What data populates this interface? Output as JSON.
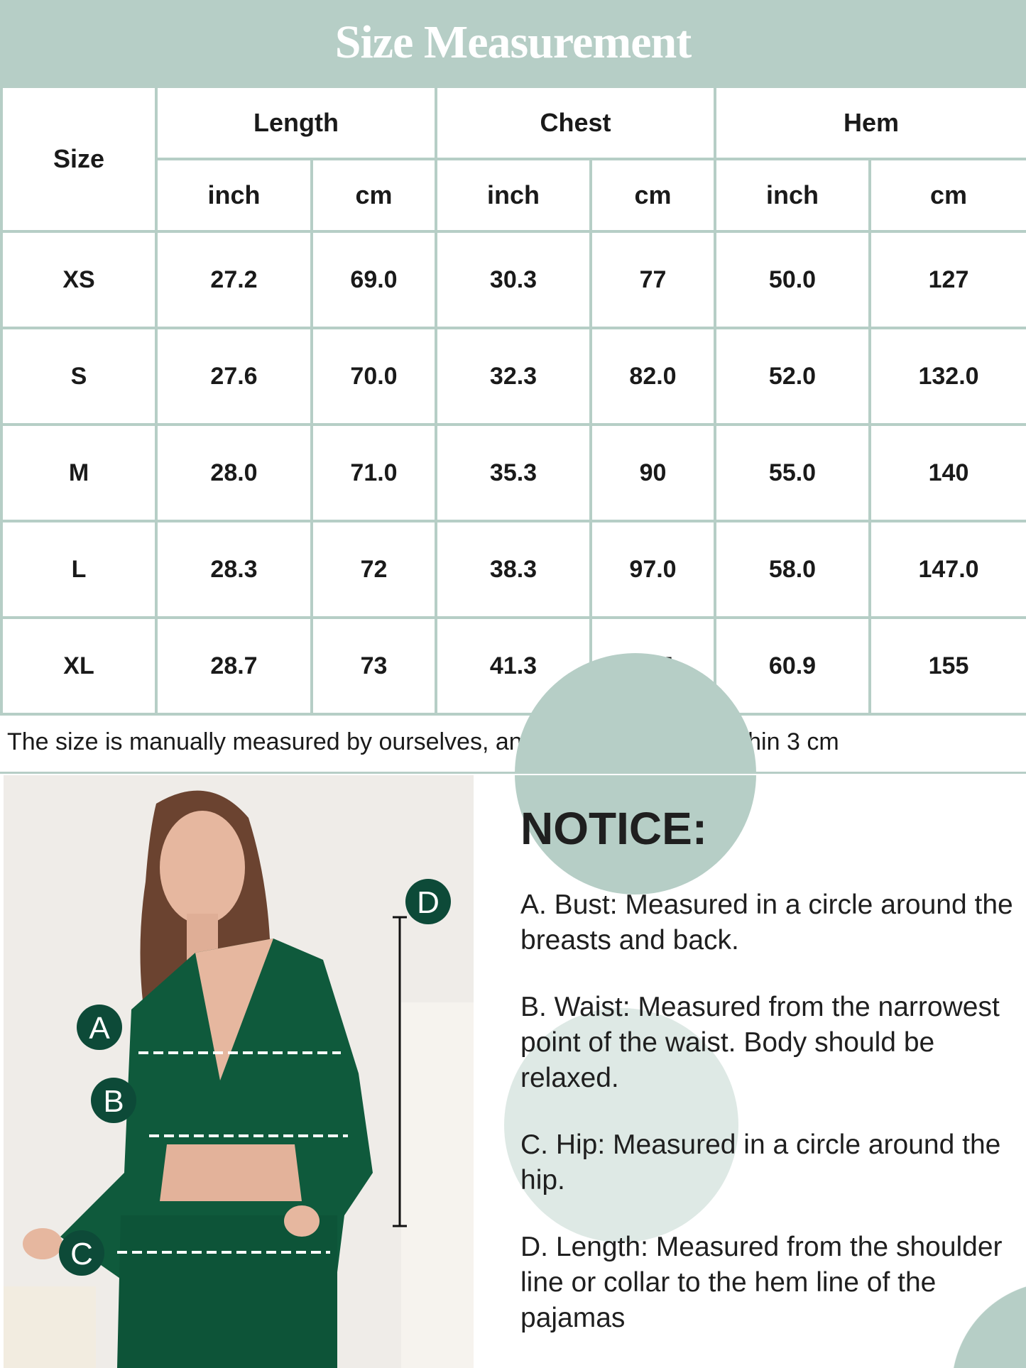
{
  "title": "Size Measurement",
  "table": {
    "size_header": "Size",
    "groups": [
      "Length",
      "Chest",
      "Hem"
    ],
    "units": [
      "inch",
      "cm",
      "inch",
      "cm",
      "inch",
      "cm"
    ],
    "rows": [
      {
        "size": "XS",
        "values": [
          "27.2",
          "69.0",
          "30.3",
          "77",
          "50.0",
          "127"
        ]
      },
      {
        "size": "S",
        "values": [
          "27.6",
          "70.0",
          "32.3",
          "82.0",
          "52.0",
          "132.0"
        ]
      },
      {
        "size": "M",
        "values": [
          "28.0",
          "71.0",
          "35.3",
          "90",
          "55.0",
          "140"
        ]
      },
      {
        "size": "L",
        "values": [
          "28.3",
          "72",
          "38.3",
          "97.0",
          "58.0",
          "147.0"
        ]
      },
      {
        "size": "XL",
        "values": [
          "28.7",
          "73",
          "41.3",
          "105",
          "60.9",
          "155"
        ]
      }
    ]
  },
  "note": "The size is manually measured by ourselves, and the data error is within 3 cm",
  "photo": {
    "markers": [
      "A",
      "B",
      "C",
      "D"
    ]
  },
  "notice": {
    "heading": "NOTICE:",
    "items": [
      "A. Bust: Measured in a circle around the breasts and back.",
      "B. Waist: Measured from the narrowest point of the waist. Body should be relaxed.",
      "C. Hip: Measured in a circle around the hip.",
      "D. Length: Measured from the shoulder line or collar to the hem line of the pajamas"
    ]
  },
  "colors": {
    "accent": "#b6cec6",
    "garment": "#0f5a3c",
    "marker": "#0d4a38"
  }
}
